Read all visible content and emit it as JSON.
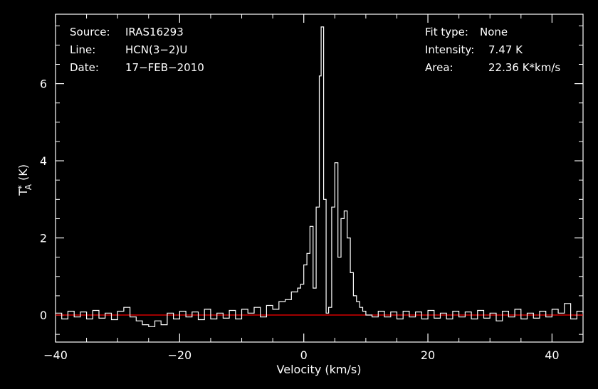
{
  "chart_data": {
    "type": "line",
    "title": "",
    "xlabel": "Velocity (km/s)",
    "ylabel": "T_A^* (K)",
    "ylabel_parts": {
      "base": "T",
      "sub": "A",
      "sup": "*",
      "unit": "(K)"
    },
    "xlim": [
      -40,
      45
    ],
    "ylim": [
      -0.7,
      7.8
    ],
    "x_ticks": [
      -40,
      -20,
      0,
      20,
      40
    ],
    "x_tick_labels": [
      "−40",
      "−20",
      "0",
      "20",
      "40"
    ],
    "y_ticks": [
      0,
      2,
      4,
      6
    ],
    "y_tick_labels": [
      "0",
      "2",
      "4",
      "6"
    ],
    "grid": false,
    "colors": {
      "background": "#000000",
      "axes": "#ffffff",
      "spectrum": "#ffffff",
      "baseline": "#ff0000"
    },
    "baseline": 0,
    "series": [
      {
        "style": "histogram-step",
        "x": [
          -40.0,
          -39.0,
          -38.0,
          -37.0,
          -36.0,
          -35.0,
          -34.0,
          -33.0,
          -32.0,
          -31.0,
          -30.0,
          -29.0,
          -28.0,
          -27.0,
          -26.0,
          -25.0,
          -24.0,
          -23.0,
          -22.0,
          -21.0,
          -20.0,
          -19.0,
          -18.0,
          -17.0,
          -16.0,
          -15.0,
          -14.0,
          -13.0,
          -12.0,
          -11.0,
          -10.0,
          -9.0,
          -8.0,
          -7.0,
          -6.0,
          -5.0,
          -4.0,
          -3.0,
          -2.0,
          -1.0,
          -0.5,
          0.0,
          0.5,
          1.0,
          1.5,
          2.0,
          2.5,
          2.8,
          3.2,
          3.6,
          4.0,
          4.5,
          5.0,
          5.5,
          6.0,
          6.5,
          7.0,
          7.5,
          8.0,
          8.5,
          9.0,
          9.5,
          10.0,
          11.0,
          12.0,
          13.0,
          14.0,
          15.0,
          16.0,
          17.0,
          18.0,
          19.0,
          20.0,
          21.0,
          22.0,
          23.0,
          24.0,
          25.0,
          26.0,
          27.0,
          28.0,
          29.0,
          30.0,
          31.0,
          32.0,
          33.0,
          34.0,
          35.0,
          36.0,
          37.0,
          38.0,
          39.0,
          40.0,
          41.0,
          42.0,
          43.0,
          44.0,
          45.0
        ],
        "y": [
          0.05,
          -0.1,
          0.1,
          -0.05,
          0.08,
          -0.1,
          0.12,
          -0.08,
          0.05,
          -0.12,
          0.1,
          0.2,
          -0.05,
          -0.15,
          -0.25,
          -0.3,
          -0.15,
          -0.25,
          0.05,
          -0.1,
          0.1,
          -0.05,
          0.08,
          -0.12,
          0.15,
          -0.1,
          0.05,
          -0.08,
          0.12,
          -0.1,
          0.15,
          0.05,
          0.2,
          -0.05,
          0.25,
          0.15,
          0.35,
          0.4,
          0.6,
          0.7,
          0.8,
          1.3,
          1.6,
          2.3,
          0.7,
          2.8,
          6.2,
          7.47,
          3.0,
          0.05,
          0.2,
          2.8,
          3.95,
          1.5,
          2.5,
          2.7,
          2.0,
          1.1,
          0.5,
          0.35,
          0.2,
          0.1,
          0.0,
          -0.05,
          0.1,
          -0.05,
          0.08,
          -0.1,
          0.1,
          -0.05,
          0.08,
          -0.1,
          0.12,
          -0.08,
          0.05,
          -0.1,
          0.1,
          -0.05,
          0.08,
          -0.1,
          0.12,
          -0.08,
          0.05,
          -0.15,
          0.1,
          -0.05,
          0.15,
          -0.1,
          0.05,
          -0.08,
          0.1,
          -0.05,
          0.15,
          0.05,
          0.3,
          -0.1,
          0.1,
          0.05
        ]
      }
    ]
  },
  "info": {
    "source_label": "Source:",
    "source_value": "IRAS16293",
    "line_label": "Line:",
    "line_value": "HCN(3−2)U",
    "date_label": "Date:",
    "date_value": "17−FEB−2010",
    "fit_label": "Fit type:",
    "fit_value": "None",
    "intensity_label": "Intensity:",
    "intensity_value": "7.47 K",
    "area_label": "Area:",
    "area_value": "22.36 K*km/s"
  }
}
